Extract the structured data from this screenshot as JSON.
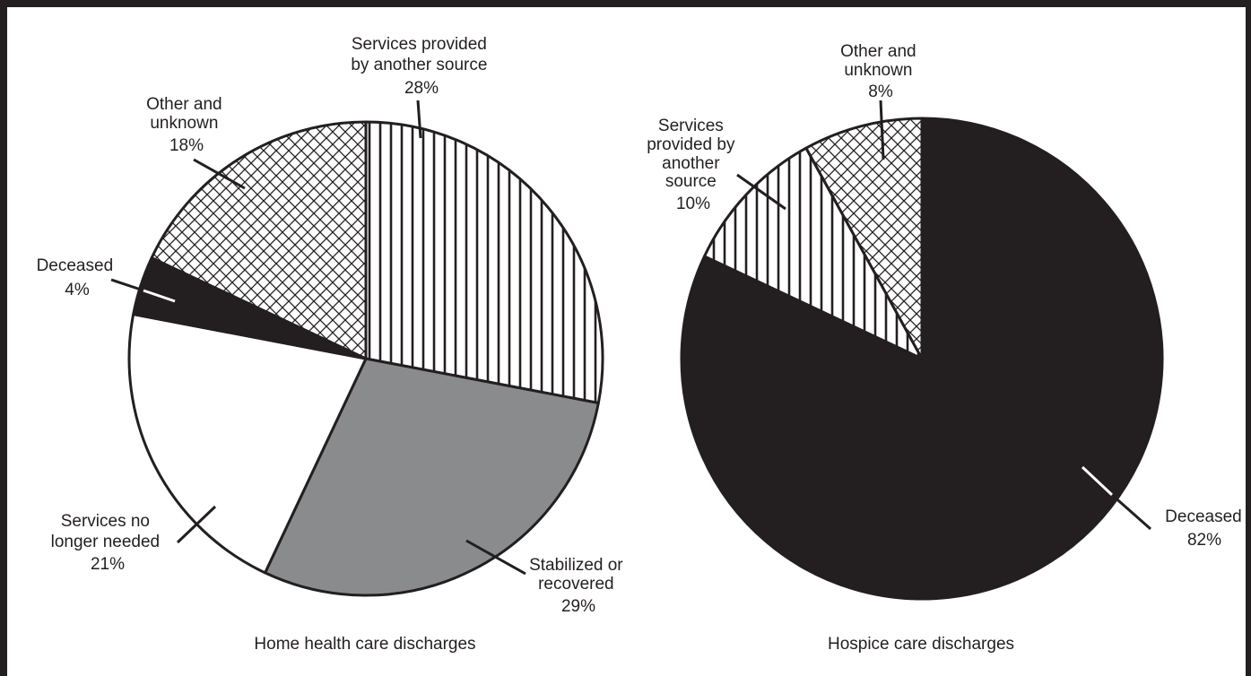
{
  "chart_data": [
    {
      "type": "pie",
      "title": "Home health care discharges",
      "slices": [
        {
          "label": "Services provided by another source",
          "value": 28,
          "pct": "28%",
          "fill": "vstripe"
        },
        {
          "label": "Stabilized or recovered",
          "value": 29,
          "pct": "29%",
          "fill": "#8a8b8d"
        },
        {
          "label": "Services no longer needed",
          "value": 21,
          "pct": "21%",
          "fill": "#ffffff"
        },
        {
          "label": "Deceased",
          "value": 4,
          "pct": "4%",
          "fill": "#231f20"
        },
        {
          "label": "Other and unknown",
          "value": 18,
          "pct": "18%",
          "fill": "crosshatch"
        }
      ],
      "label_lines": {
        "s0": [
          "Services provided",
          "by another source",
          "28%"
        ],
        "s1": [
          "Stabilized or",
          "recovered",
          "29%"
        ],
        "s2": [
          "Services no",
          "longer needed",
          "21%"
        ],
        "s3": [
          "Deceased",
          "4%"
        ],
        "s4": [
          "Other and",
          "unknown",
          "18%"
        ]
      }
    },
    {
      "type": "pie",
      "title": "Hospice care discharges",
      "slices": [
        {
          "label": "Deceased",
          "value": 82,
          "pct": "82%",
          "fill": "#231f20"
        },
        {
          "label": "Services provided by another source",
          "value": 10,
          "pct": "10%",
          "fill": "vstripe"
        },
        {
          "label": "Other and unknown",
          "value": 8,
          "pct": "8%",
          "fill": "crosshatch"
        }
      ],
      "label_lines": {
        "s0": [
          "Deceased",
          "82%"
        ],
        "s1": [
          "Services",
          "provided by",
          "another",
          "source",
          "10%"
        ],
        "s2": [
          "Other and",
          "unknown",
          "8%"
        ]
      }
    }
  ],
  "colors": {
    "ink": "#231f20",
    "gray": "#8a8b8d",
    "background": "#ffffff"
  }
}
